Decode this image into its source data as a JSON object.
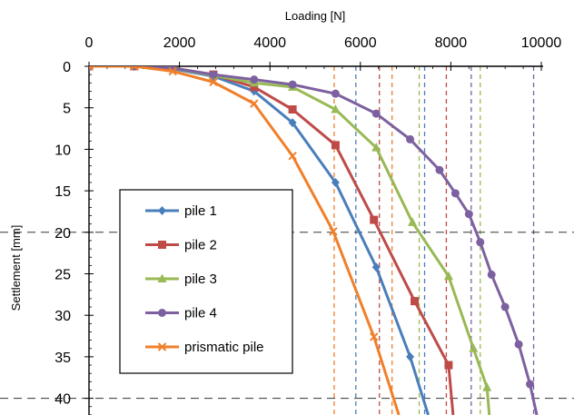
{
  "chart_data": {
    "type": "line",
    "xlabel": "Loading [N]",
    "ylabel": "Settlement [mm]",
    "xlim": [
      0,
      10000
    ],
    "ylim": [
      0,
      42
    ],
    "y_inverted": true,
    "x_axis_position": "top",
    "x_ticks": [
      "0",
      "2000",
      "4000",
      "6000",
      "8000",
      "10000"
    ],
    "y_ticks": [
      "0",
      "5",
      "10",
      "15",
      "20",
      "25",
      "30",
      "35",
      "40"
    ],
    "reference_lines_horizontal": [
      20,
      40
    ],
    "legend": {
      "placement": "center-left",
      "entries": [
        "pile 1",
        "pile 2",
        "pile 3",
        "pile 4",
        "prismatic pile"
      ]
    },
    "series": [
      {
        "name": "pile 1",
        "color": "#4a7ebb",
        "marker": "diamond",
        "x": [
          0,
          1000,
          1850,
          2750,
          3650,
          4500,
          5450,
          6350,
          7100,
          7500
        ],
        "y": [
          0,
          0,
          0.3,
          1.2,
          3.0,
          6.8,
          14.0,
          24.2,
          35.0,
          42.0
        ],
        "vline_x": [
          5900,
          7420
        ]
      },
      {
        "name": "pile 2",
        "color": "#be4b48",
        "marker": "square",
        "x": [
          0,
          1000,
          1850,
          2750,
          3650,
          4500,
          5450,
          6300,
          7200,
          7950,
          8050
        ],
        "y": [
          0,
          0,
          0.2,
          1.0,
          2.5,
          5.2,
          9.5,
          18.5,
          28.3,
          36.0,
          42.0
        ],
        "vline_x": [
          6420,
          7900
        ]
      },
      {
        "name": "pile 3",
        "color": "#98b954",
        "marker": "triangle",
        "x": [
          0,
          1000,
          1850,
          2750,
          3650,
          4500,
          5450,
          6350,
          7150,
          7950,
          8500,
          8800,
          8850
        ],
        "y": [
          0,
          0,
          0.2,
          1.1,
          2.0,
          2.5,
          5.2,
          9.8,
          18.8,
          25.3,
          34.0,
          38.7,
          42.0
        ],
        "vline_x": [
          7300,
          8650
        ]
      },
      {
        "name": "pile 4",
        "color": "#7d60a0",
        "marker": "circle",
        "x": [
          0,
          1000,
          1850,
          2750,
          3650,
          4500,
          5450,
          6350,
          7100,
          7750,
          8100,
          8400,
          8650,
          8900,
          9200,
          9500,
          9750,
          9900
        ],
        "y": [
          0,
          0,
          0.2,
          1.0,
          1.6,
          2.2,
          3.3,
          5.7,
          8.8,
          12.5,
          15.3,
          17.8,
          21.2,
          25.1,
          29.0,
          33.5,
          38.3,
          42.0
        ],
        "vline_x": [
          8450,
          9830
        ]
      },
      {
        "name": "prismatic pile",
        "color": "#f07f2a",
        "marker": "x",
        "x": [
          0,
          1000,
          1850,
          2750,
          3650,
          4500,
          5400,
          6300,
          6850
        ],
        "y": [
          0,
          0,
          0.6,
          1.9,
          4.5,
          10.8,
          19.9,
          32.6,
          42.0
        ],
        "vline_x": [
          5420,
          6700
        ]
      }
    ]
  }
}
